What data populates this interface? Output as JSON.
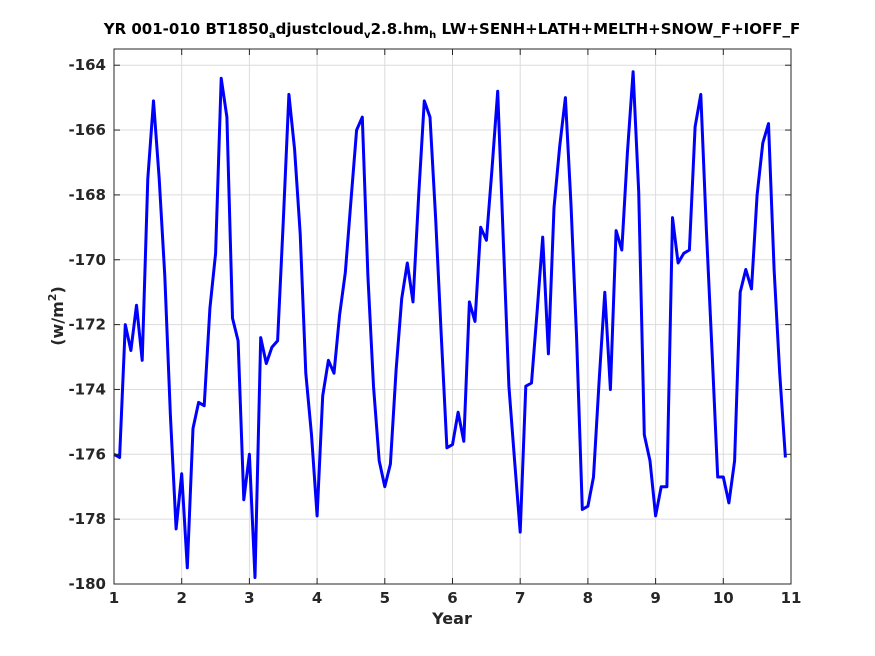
{
  "chart_data": {
    "type": "line",
    "title_parts": {
      "p1": "YR 001-010 BT1850",
      "sub1": "a",
      "p2": "djustcloud",
      "sub2": "v",
      "p3": "2.8.hm",
      "sub3": "h",
      "p4": " LW+SENH+LATH+MELTH+SNOW_F+IOFF_F"
    },
    "xlabel": "Year",
    "ylabel_parts": {
      "base": "(w/m",
      "sup": "2",
      "end": ")"
    },
    "xlim": [
      1,
      11
    ],
    "ylim": [
      -180,
      -163.5
    ],
    "xticks": [
      "1",
      "2",
      "3",
      "4",
      "5",
      "6",
      "7",
      "8",
      "9",
      "10",
      "11"
    ],
    "yticks": [
      "-164",
      "-166",
      "-168",
      "-170",
      "-172",
      "-174",
      "-176",
      "-178",
      "-180"
    ],
    "grid": true,
    "color": "#0000ff",
    "series": [
      {
        "x": [
          1.0,
          1.083,
          1.167,
          1.25,
          1.333,
          1.417,
          1.5,
          1.583,
          1.667,
          1.75,
          1.833,
          1.917,
          2.0,
          2.083,
          2.167,
          2.25,
          2.333,
          2.417,
          2.5,
          2.583,
          2.667,
          2.75,
          2.833,
          2.917,
          3.0,
          3.083,
          3.167,
          3.25,
          3.333,
          3.417,
          3.5,
          3.583,
          3.667,
          3.75,
          3.833,
          3.917,
          4.0,
          4.083,
          4.167,
          4.25,
          4.333,
          4.417,
          4.5,
          4.583,
          4.667,
          4.75,
          4.833,
          4.917,
          5.0,
          5.083,
          5.167,
          5.25,
          5.333,
          5.417,
          5.5,
          5.583,
          5.667,
          5.75,
          5.833,
          5.917,
          6.0,
          6.083,
          6.167,
          6.25,
          6.333,
          6.417,
          6.5,
          6.583,
          6.667,
          6.75,
          6.833,
          6.917,
          7.0,
          7.083,
          7.167,
          7.25,
          7.333,
          7.417,
          7.5,
          7.583,
          7.667,
          7.75,
          7.833,
          7.917,
          8.0,
          8.083,
          8.167,
          8.25,
          8.333,
          8.417,
          8.5,
          8.583,
          8.667,
          8.75,
          8.833,
          8.917,
          9.0,
          9.083,
          9.167,
          9.25,
          9.333,
          9.417,
          9.5,
          9.583,
          9.667,
          9.75,
          9.833,
          9.917,
          10.0,
          10.083,
          10.167,
          10.25,
          10.333,
          10.417,
          10.5,
          10.583,
          10.667,
          10.75,
          10.833,
          10.917
        ],
        "y": [
          -176.0,
          -176.1,
          -172.0,
          -172.8,
          -171.4,
          -173.1,
          -167.5,
          -165.1,
          -167.5,
          -170.5,
          -174.8,
          -178.3,
          -176.6,
          -179.5,
          -175.2,
          -174.4,
          -174.5,
          -171.5,
          -169.8,
          -164.4,
          -165.6,
          -171.8,
          -172.5,
          -177.4,
          -176.0,
          -179.8,
          -172.4,
          -173.2,
          -172.7,
          -172.5,
          -168.8,
          -164.9,
          -166.6,
          -169.2,
          -173.5,
          -175.4,
          -177.9,
          -174.2,
          -173.1,
          -173.5,
          -171.7,
          -170.4,
          -168.2,
          -166.0,
          -165.6,
          -170.5,
          -173.9,
          -176.2,
          -177.0,
          -176.3,
          -173.4,
          -171.2,
          -170.1,
          -171.3,
          -168.0,
          -165.1,
          -165.6,
          -168.7,
          -172.3,
          -175.8,
          -175.7,
          -174.7,
          -175.6,
          -171.3,
          -171.9,
          -169.0,
          -169.4,
          -167.2,
          -164.8,
          -169.4,
          -173.9,
          -176.2,
          -178.4,
          -173.9,
          -173.8,
          -171.6,
          -169.3,
          -172.9,
          -168.4,
          -166.5,
          -165.0,
          -168.3,
          -172.4,
          -177.7,
          -177.6,
          -176.7,
          -173.7,
          -171.0,
          -174.0,
          -169.1,
          -169.7,
          -166.7,
          -164.2,
          -167.9,
          -175.4,
          -176.2,
          -177.9,
          -177.0,
          -177.0,
          -168.7,
          -170.1,
          -169.8,
          -169.7,
          -165.9,
          -164.9,
          -169.1,
          -172.8,
          -176.7,
          -176.7,
          -177.5,
          -176.2,
          -171.0,
          -170.3,
          -170.9,
          -168.0,
          -166.4,
          -165.8,
          -170.3,
          -173.5,
          -176.1
        ]
      }
    ]
  }
}
